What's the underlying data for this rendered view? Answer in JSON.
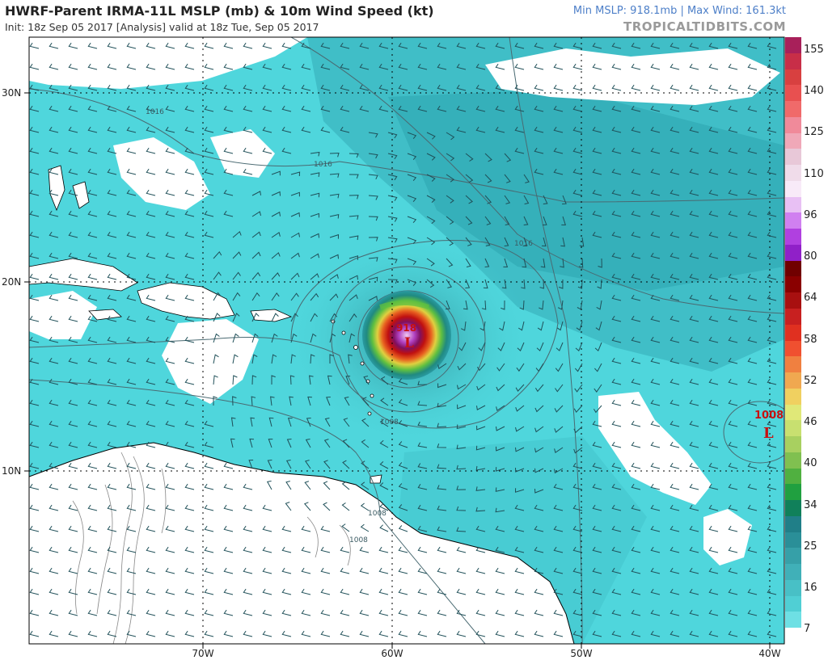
{
  "header": {
    "title": "HWRF-Parent IRMA-11L MSLP (mb) & 10m Wind Speed (kt)",
    "subtitle": "Init: 18z Sep 05 2017   [Analysis]   valid at 18z Tue, Sep 05 2017",
    "stats": "Min MSLP: 918.1mb | Max Wind: 161.3kt",
    "brand": "TROPICALTIDBITS.COM"
  },
  "map": {
    "lat_labels": [
      "30N",
      "20N",
      "10N"
    ],
    "lon_labels": [
      "70W",
      "60W",
      "50W",
      "40W"
    ],
    "isobar_labels": [
      "1016",
      "1016",
      "1016",
      "1008",
      "1008",
      "1008"
    ],
    "lows": [
      {
        "symbol": "L",
        "pressure": "918"
      },
      {
        "symbol": "L",
        "pressure": "1008"
      }
    ]
  },
  "colorbar": {
    "labels": [
      "155",
      "140",
      "125",
      "110",
      "96",
      "80",
      "64",
      "58",
      "52",
      "46",
      "40",
      "34",
      "25",
      "16",
      "7"
    ]
  },
  "colors": {
    "ocean_base": "#4fd6dc",
    "clear": "#ffffff",
    "land_line": "#000000"
  }
}
